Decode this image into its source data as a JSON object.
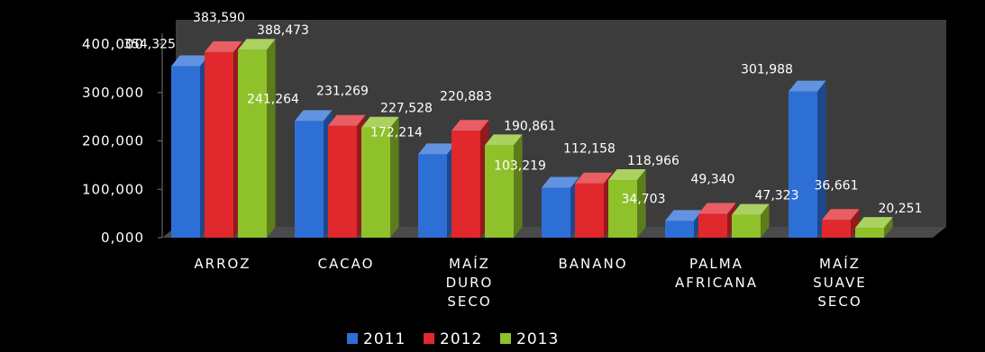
{
  "chart_data": {
    "type": "bar",
    "categories": [
      [
        "ARROZ"
      ],
      [
        "CACAO"
      ],
      [
        "MAÍZ",
        "DURO",
        "SECO"
      ],
      [
        "BANANO"
      ],
      [
        "PALMA",
        "AFRICANA"
      ],
      [
        "MAÍZ",
        "SUAVE",
        "SECO"
      ]
    ],
    "series": [
      {
        "name": "2011",
        "color": "#2e6fd6",
        "values": [
          354325,
          241264,
          172214,
          103219,
          34703,
          301988
        ],
        "labels": [
          "354,325",
          "241,264",
          "172,214",
          "103,219",
          "34,703",
          "301,988"
        ]
      },
      {
        "name": "2012",
        "color": "#e0282d",
        "values": [
          383590,
          231269,
          220883,
          112158,
          49340,
          36661
        ],
        "labels": [
          "383,590",
          "231,269",
          "220,883",
          "112,158",
          "49,340",
          "36,661"
        ]
      },
      {
        "name": "2013",
        "color": "#8fc12b",
        "values": [
          388473,
          227528,
          190861,
          118966,
          47323,
          20251
        ],
        "labels": [
          "388,473",
          "227,528",
          "190,861",
          "118,966",
          "47,323",
          "20,251"
        ]
      }
    ],
    "y_ticks": [
      {
        "value": 0,
        "label": "0,000"
      },
      {
        "value": 100000,
        "label": "100,000"
      },
      {
        "value": 200000,
        "label": "200,000"
      },
      {
        "value": 300000,
        "label": "300,000"
      },
      {
        "value": 400000,
        "label": "400,000"
      }
    ],
    "ylim": [
      0,
      400000
    ],
    "title": "",
    "xlabel": "",
    "ylabel": "",
    "legend": "bottom",
    "grid": false,
    "background": "#000000"
  }
}
